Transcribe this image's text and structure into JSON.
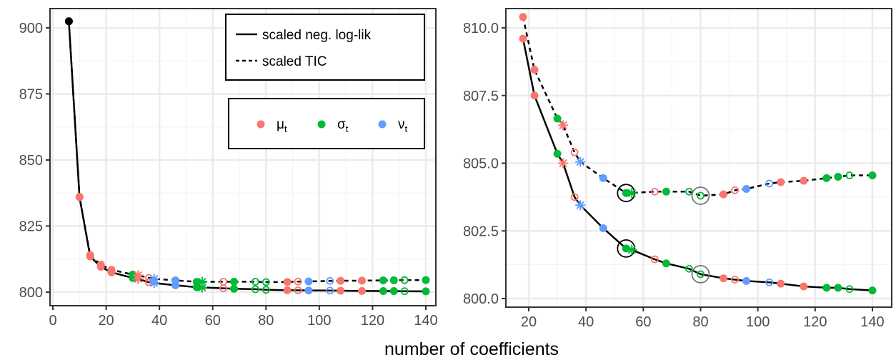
{
  "chart_data": {
    "type": "scatter",
    "xlabel": "number of coefficients",
    "legend_lines": [
      "scaled neg. log-lik",
      "scaled TIC"
    ],
    "legend_params": [
      {
        "sym": "μ",
        "sub": "t",
        "color": "#F8766D"
      },
      {
        "sym": "σ",
        "sub": "t",
        "color": "#00BA38"
      },
      {
        "sym": "ν",
        "sub": "t",
        "color": "#619CFF"
      }
    ],
    "panels": [
      {
        "xlim": [
          0,
          140
        ],
        "ylim": [
          800,
          903
        ],
        "xticks": [
          0,
          20,
          40,
          60,
          80,
          100,
          120,
          140
        ],
        "yticks": [
          800,
          825,
          850,
          875,
          900
        ],
        "ytick_labels": [
          "800",
          "825",
          "850",
          "875",
          "900"
        ],
        "legend": "top-right"
      },
      {
        "xlim": [
          18,
          140
        ],
        "ylim": [
          800,
          810.4
        ],
        "xticks": [
          20,
          40,
          60,
          80,
          100,
          120,
          140
        ],
        "yticks": [
          800,
          802.5,
          805,
          807.5,
          810
        ],
        "ytick_labels": [
          "800.0",
          "802.5",
          "805.0",
          "807.5",
          "810.0"
        ]
      }
    ],
    "points": [
      {
        "x": 6,
        "nll": 902.5,
        "tic": 902.5,
        "param": "none",
        "shape": "filled"
      },
      {
        "x": 10,
        "nll": 836,
        "tic": 836,
        "param": "mu",
        "shape": "filled"
      },
      {
        "x": 14,
        "nll": 813.5,
        "tic": 814,
        "param": "mu",
        "shape": "filled"
      },
      {
        "x": 18,
        "nll": 809.6,
        "tic": 810.4,
        "param": "mu",
        "shape": "filled"
      },
      {
        "x": 22,
        "nll": 807.5,
        "tic": 808.45,
        "param": "mu",
        "shape": "filled"
      },
      {
        "x": 30,
        "nll": 805.35,
        "tic": 806.65,
        "param": "sigma",
        "shape": "filled"
      },
      {
        "x": 32,
        "nll": 805.0,
        "tic": 806.4,
        "param": "mu",
        "shape": "star"
      },
      {
        "x": 36,
        "nll": 803.75,
        "tic": 805.4,
        "param": "mu",
        "shape": "open"
      },
      {
        "x": 38,
        "nll": 803.45,
        "tic": 805.05,
        "param": "nu",
        "shape": "star"
      },
      {
        "x": 46,
        "nll": 802.6,
        "tic": 804.45,
        "param": "nu",
        "shape": "filled"
      },
      {
        "x": 54,
        "nll": 801.85,
        "tic": 803.9,
        "param": "sigma",
        "shape": "filled",
        "highlight": "black"
      },
      {
        "x": 56,
        "nll": 801.8,
        "tic": 803.9,
        "param": "sigma",
        "shape": "star"
      },
      {
        "x": 64,
        "nll": 801.45,
        "tic": 803.95,
        "param": "mu",
        "shape": "open"
      },
      {
        "x": 68,
        "nll": 801.3,
        "tic": 803.95,
        "param": "sigma",
        "shape": "filled"
      },
      {
        "x": 76,
        "nll": 801.1,
        "tic": 803.95,
        "param": "sigma",
        "shape": "open"
      },
      {
        "x": 80,
        "nll": 800.9,
        "tic": 803.8,
        "param": "sigma",
        "shape": "open",
        "highlight": "grey"
      },
      {
        "x": 88,
        "nll": 800.75,
        "tic": 803.85,
        "param": "mu",
        "shape": "filled"
      },
      {
        "x": 92,
        "nll": 800.7,
        "tic": 804.0,
        "param": "mu",
        "shape": "open"
      },
      {
        "x": 96,
        "nll": 800.65,
        "tic": 804.05,
        "param": "nu",
        "shape": "filled"
      },
      {
        "x": 104,
        "nll": 800.6,
        "tic": 804.25,
        "param": "nu",
        "shape": "open"
      },
      {
        "x": 108,
        "nll": 800.55,
        "tic": 804.3,
        "param": "mu",
        "shape": "filled"
      },
      {
        "x": 116,
        "nll": 800.45,
        "tic": 804.35,
        "param": "mu",
        "shape": "filled"
      },
      {
        "x": 124,
        "nll": 800.4,
        "tic": 804.45,
        "param": "sigma",
        "shape": "filled"
      },
      {
        "x": 128,
        "nll": 800.4,
        "tic": 804.5,
        "param": "sigma",
        "shape": "filled"
      },
      {
        "x": 132,
        "nll": 800.35,
        "tic": 804.55,
        "param": "sigma",
        "shape": "open"
      },
      {
        "x": 140,
        "nll": 800.3,
        "tic": 804.55,
        "param": "sigma",
        "shape": "filled"
      }
    ],
    "colors": {
      "mu": "#F8766D",
      "sigma": "#00BA38",
      "nu": "#619CFF",
      "none": "#000000"
    }
  }
}
